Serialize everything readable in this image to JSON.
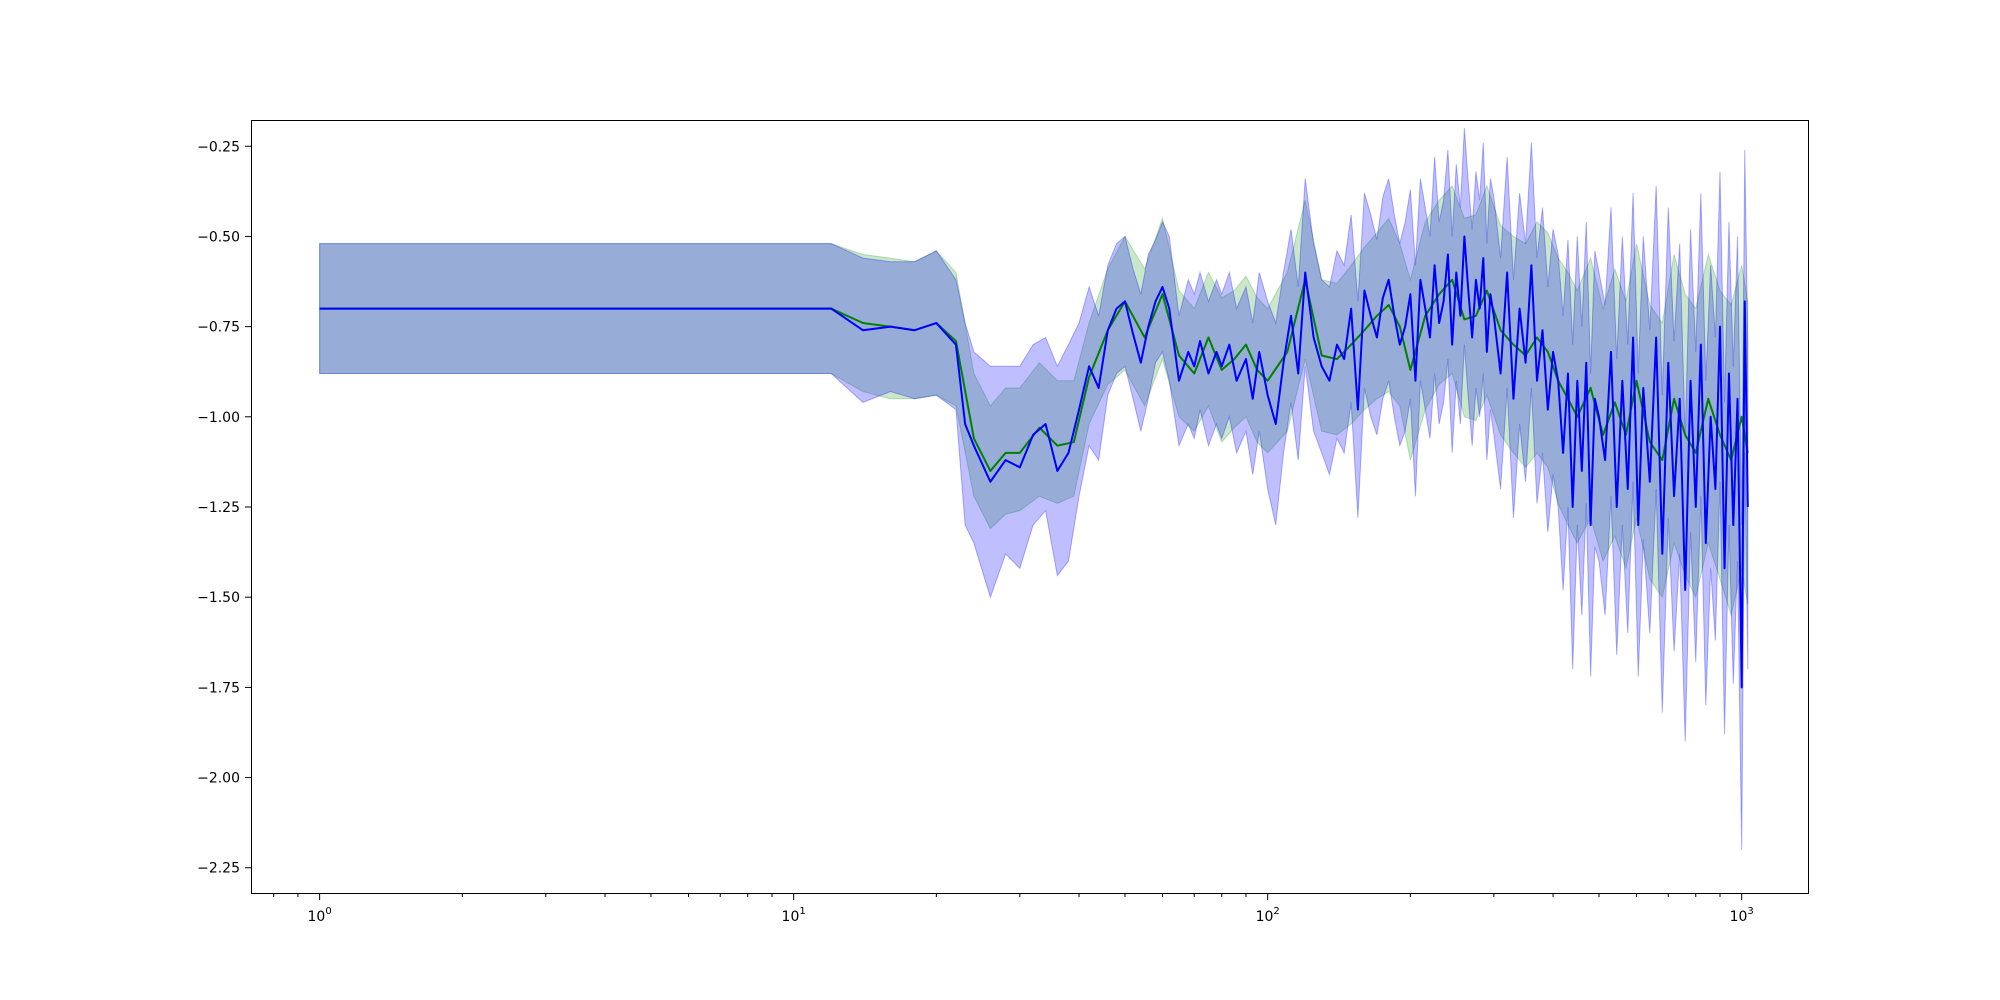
{
  "chart_data": {
    "type": "line",
    "title": "",
    "xlabel": "",
    "ylabel": "",
    "x_scale": "log",
    "xlim": [
      0.72,
      1380
    ],
    "ylim": [
      -2.32,
      -0.18
    ],
    "grid": false,
    "legend": "none",
    "x_ticks": [
      {
        "value": 1,
        "base": "10",
        "exp": "0"
      },
      {
        "value": 10,
        "base": "10",
        "exp": "1"
      },
      {
        "value": 100,
        "base": "10",
        "exp": "2"
      },
      {
        "value": 1000,
        "base": "10",
        "exp": "3"
      }
    ],
    "y_ticks": [
      {
        "value": -0.25,
        "label": "−0.25"
      },
      {
        "value": -0.5,
        "label": "−0.50"
      },
      {
        "value": -0.75,
        "label": "−0.75"
      },
      {
        "value": -1.0,
        "label": "−1.00"
      },
      {
        "value": -1.25,
        "label": "−1.25"
      },
      {
        "value": -1.5,
        "label": "−1.50"
      },
      {
        "value": -1.75,
        "label": "−1.75"
      },
      {
        "value": -2.0,
        "label": "−2.00"
      },
      {
        "value": -2.25,
        "label": "−2.25"
      }
    ],
    "series": [
      {
        "color": "#008000",
        "band_color": "#2ca02c",
        "x": [
          1,
          12,
          14,
          16,
          18,
          20,
          22,
          24,
          26,
          28,
          30,
          33,
          36,
          39,
          42,
          46,
          50,
          55,
          60,
          65,
          70,
          75,
          80,
          85,
          90,
          95,
          100,
          110,
          120,
          130,
          140,
          150,
          160,
          170,
          180,
          190,
          200,
          215,
          230,
          245,
          260,
          275,
          290,
          310,
          330,
          350,
          370,
          390,
          410,
          430,
          450,
          480,
          510,
          540,
          570,
          600,
          640,
          680,
          720,
          760,
          800,
          850,
          900,
          950,
          1000,
          1030
        ],
        "mean": [
          -0.7,
          -0.7,
          -0.74,
          -0.75,
          -0.76,
          -0.74,
          -0.79,
          -1.06,
          -1.15,
          -1.1,
          -1.1,
          -1.03,
          -1.08,
          -1.07,
          -0.89,
          -0.76,
          -0.68,
          -0.78,
          -0.66,
          -0.83,
          -0.88,
          -0.78,
          -0.87,
          -0.84,
          -0.8,
          -0.87,
          -0.9,
          -0.82,
          -0.62,
          -0.83,
          -0.84,
          -0.8,
          -0.76,
          -0.72,
          -0.69,
          -0.75,
          -0.87,
          -0.72,
          -0.66,
          -0.62,
          -0.73,
          -0.72,
          -0.65,
          -0.76,
          -0.8,
          -0.83,
          -0.78,
          -0.82,
          -0.9,
          -0.95,
          -1.0,
          -0.92,
          -1.05,
          -0.96,
          -1.05,
          -0.9,
          -1.07,
          -1.12,
          -0.95,
          -1.05,
          -1.1,
          -0.95,
          -1.05,
          -1.12,
          -1.0,
          -1.1
        ],
        "lower": [
          -0.88,
          -0.88,
          -0.93,
          -0.95,
          -0.95,
          -0.94,
          -0.97,
          -1.22,
          -1.31,
          -1.27,
          -1.26,
          -1.22,
          -1.24,
          -1.22,
          -1.02,
          -0.91,
          -0.87,
          -0.97,
          -0.84,
          -1.0,
          -1.04,
          -0.97,
          -1.07,
          -1.03,
          -1.0,
          -1.07,
          -1.1,
          -1.04,
          -0.84,
          -1.04,
          -1.05,
          -1.02,
          -0.98,
          -0.95,
          -0.93,
          -0.97,
          -1.12,
          -0.98,
          -0.91,
          -0.88,
          -1.0,
          -1.01,
          -0.94,
          -1.05,
          -1.1,
          -1.14,
          -1.1,
          -1.14,
          -1.24,
          -1.3,
          -1.35,
          -1.28,
          -1.4,
          -1.33,
          -1.42,
          -1.28,
          -1.45,
          -1.5,
          -1.35,
          -1.44,
          -1.5,
          -1.35,
          -1.45,
          -1.55,
          -1.42,
          -1.52
        ],
        "upper": [
          -0.52,
          -0.52,
          -0.55,
          -0.56,
          -0.57,
          -0.54,
          -0.6,
          -0.88,
          -0.97,
          -0.92,
          -0.92,
          -0.85,
          -0.9,
          -0.9,
          -0.74,
          -0.59,
          -0.5,
          -0.59,
          -0.45,
          -0.65,
          -0.7,
          -0.6,
          -0.67,
          -0.65,
          -0.61,
          -0.67,
          -0.7,
          -0.6,
          -0.4,
          -0.62,
          -0.63,
          -0.58,
          -0.53,
          -0.49,
          -0.45,
          -0.52,
          -0.62,
          -0.46,
          -0.4,
          -0.36,
          -0.45,
          -0.44,
          -0.36,
          -0.47,
          -0.5,
          -0.52,
          -0.46,
          -0.49,
          -0.56,
          -0.6,
          -0.65,
          -0.56,
          -0.7,
          -0.59,
          -0.68,
          -0.52,
          -0.69,
          -0.74,
          -0.55,
          -0.66,
          -0.7,
          -0.55,
          -0.65,
          -0.69,
          -0.58,
          -0.68
        ]
      },
      {
        "color": "#0000ff",
        "band_color": "#0000ff",
        "x": [
          1,
          12,
          14,
          16,
          18,
          20,
          22,
          23,
          24,
          26,
          28,
          30,
          32,
          34,
          36,
          38,
          40,
          42,
          44,
          46,
          48,
          50,
          52,
          54,
          56,
          58,
          60,
          62,
          65,
          68,
          70,
          72,
          75,
          78,
          80,
          83,
          86,
          90,
          93,
          96,
          100,
          104,
          108,
          112,
          116,
          120,
          125,
          130,
          135,
          140,
          145,
          150,
          155,
          160,
          165,
          170,
          175,
          180,
          185,
          190,
          195,
          200,
          205,
          210,
          215,
          220,
          225,
          230,
          235,
          240,
          245,
          250,
          255,
          260,
          265,
          270,
          275,
          280,
          285,
          290,
          295,
          300,
          310,
          320,
          330,
          340,
          350,
          360,
          370,
          380,
          390,
          400,
          410,
          420,
          430,
          440,
          450,
          460,
          470,
          480,
          490,
          500,
          515,
          530,
          545,
          560,
          575,
          590,
          605,
          620,
          640,
          660,
          680,
          700,
          720,
          740,
          760,
          780,
          800,
          820,
          840,
          860,
          880,
          900,
          920,
          940,
          960,
          980,
          1000,
          1015,
          1030
        ],
        "mean": [
          -0.7,
          -0.7,
          -0.76,
          -0.75,
          -0.76,
          -0.74,
          -0.8,
          -1.02,
          -1.08,
          -1.18,
          -1.12,
          -1.14,
          -1.05,
          -1.02,
          -1.15,
          -1.1,
          -0.98,
          -0.86,
          -0.92,
          -0.76,
          -0.7,
          -0.68,
          -0.77,
          -0.85,
          -0.75,
          -0.68,
          -0.64,
          -0.7,
          -0.9,
          -0.82,
          -0.86,
          -0.79,
          -0.88,
          -0.82,
          -0.86,
          -0.8,
          -0.9,
          -0.84,
          -0.95,
          -0.82,
          -0.94,
          -1.02,
          -0.85,
          -0.72,
          -0.88,
          -0.6,
          -0.78,
          -0.86,
          -0.9,
          -0.8,
          -0.84,
          -0.7,
          -0.98,
          -0.65,
          -0.72,
          -0.78,
          -0.67,
          -0.62,
          -0.72,
          -0.8,
          -0.75,
          -0.66,
          -0.9,
          -0.62,
          -0.7,
          -0.78,
          -0.58,
          -0.74,
          -0.68,
          -0.55,
          -0.8,
          -0.6,
          -0.72,
          -0.5,
          -0.65,
          -0.78,
          -0.62,
          -0.7,
          -0.56,
          -0.82,
          -0.66,
          -0.72,
          -0.88,
          -0.6,
          -0.95,
          -0.7,
          -0.85,
          -0.58,
          -0.9,
          -0.76,
          -0.98,
          -0.82,
          -0.9,
          -1.1,
          -0.88,
          -1.25,
          -0.9,
          -1.15,
          -0.85,
          -1.3,
          -0.95,
          -1.0,
          -1.12,
          -0.82,
          -1.25,
          -0.9,
          -1.2,
          -0.78,
          -1.3,
          -0.92,
          -1.18,
          -0.78,
          -1.38,
          -0.85,
          -1.22,
          -0.95,
          -1.48,
          -0.9,
          -1.25,
          -0.8,
          -1.35,
          -1.0,
          -1.2,
          -0.75,
          -1.42,
          -0.88,
          -1.3,
          -0.95,
          -1.75,
          -0.68,
          -1.25
        ],
        "lower": [
          -0.88,
          -0.88,
          -0.96,
          -0.93,
          -0.95,
          -0.94,
          -0.98,
          -1.3,
          -1.35,
          -1.5,
          -1.38,
          -1.42,
          -1.3,
          -1.26,
          -1.44,
          -1.4,
          -1.22,
          -1.08,
          -1.12,
          -0.94,
          -0.88,
          -0.86,
          -0.95,
          -1.04,
          -0.95,
          -0.85,
          -0.82,
          -0.9,
          -1.08,
          -1.02,
          -1.06,
          -0.98,
          -1.08,
          -1.02,
          -1.06,
          -1.0,
          -1.1,
          -1.04,
          -1.16,
          -1.04,
          -1.2,
          -1.3,
          -1.1,
          -0.96,
          -1.12,
          -0.86,
          -1.04,
          -1.1,
          -1.16,
          -1.06,
          -1.1,
          -0.96,
          -1.28,
          -0.92,
          -1.0,
          -1.05,
          -0.95,
          -0.9,
          -1.0,
          -1.08,
          -1.04,
          -0.95,
          -1.22,
          -0.9,
          -0.98,
          -1.06,
          -0.88,
          -1.02,
          -0.96,
          -0.84,
          -1.1,
          -0.9,
          -1.02,
          -0.8,
          -0.95,
          -1.08,
          -0.92,
          -1.0,
          -0.88,
          -1.12,
          -0.98,
          -1.05,
          -1.2,
          -0.92,
          -1.28,
          -1.02,
          -1.18,
          -0.92,
          -1.24,
          -1.1,
          -1.32,
          -1.16,
          -1.25,
          -1.48,
          -1.25,
          -1.7,
          -1.3,
          -1.55,
          -1.24,
          -1.72,
          -1.36,
          -1.4,
          -1.55,
          -1.22,
          -1.66,
          -1.3,
          -1.6,
          -1.18,
          -1.72,
          -1.34,
          -1.6,
          -1.2,
          -1.82,
          -1.28,
          -1.65,
          -1.38,
          -1.9,
          -1.32,
          -1.68,
          -1.22,
          -1.8,
          -1.42,
          -1.62,
          -1.18,
          -1.88,
          -1.3,
          -1.74,
          -1.4,
          -2.2,
          -1.1,
          -1.7
        ],
        "upper": [
          -0.52,
          -0.52,
          -0.56,
          -0.57,
          -0.57,
          -0.54,
          -0.62,
          -0.74,
          -0.82,
          -0.86,
          -0.86,
          -0.86,
          -0.8,
          -0.78,
          -0.86,
          -0.8,
          -0.74,
          -0.64,
          -0.72,
          -0.58,
          -0.52,
          -0.5,
          -0.59,
          -0.66,
          -0.55,
          -0.51,
          -0.46,
          -0.5,
          -0.72,
          -0.62,
          -0.66,
          -0.6,
          -0.68,
          -0.62,
          -0.66,
          -0.6,
          -0.7,
          -0.64,
          -0.74,
          -0.6,
          -0.68,
          -0.74,
          -0.6,
          -0.48,
          -0.64,
          -0.34,
          -0.52,
          -0.62,
          -0.64,
          -0.54,
          -0.58,
          -0.44,
          -0.68,
          -0.38,
          -0.44,
          -0.51,
          -0.39,
          -0.34,
          -0.44,
          -0.52,
          -0.46,
          -0.37,
          -0.58,
          -0.34,
          -0.42,
          -0.5,
          -0.28,
          -0.46,
          -0.4,
          -0.26,
          -0.5,
          -0.3,
          -0.42,
          -0.2,
          -0.35,
          -0.48,
          -0.32,
          -0.4,
          -0.24,
          -0.52,
          -0.34,
          -0.39,
          -0.56,
          -0.28,
          -0.62,
          -0.38,
          -0.52,
          -0.24,
          -0.56,
          -0.42,
          -0.64,
          -0.48,
          -0.55,
          -0.72,
          -0.51,
          -0.8,
          -0.5,
          -0.75,
          -0.46,
          -0.88,
          -0.54,
          -0.6,
          -0.69,
          -0.42,
          -0.84,
          -0.5,
          -0.8,
          -0.38,
          -0.88,
          -0.5,
          -0.76,
          -0.36,
          -0.94,
          -0.42,
          -0.79,
          -0.52,
          -1.06,
          -0.48,
          -0.82,
          -0.38,
          -0.9,
          -0.58,
          -0.78,
          -0.32,
          -0.96,
          -0.46,
          -0.86,
          -0.5,
          -1.3,
          -0.26,
          -0.8
        ]
      }
    ]
  }
}
